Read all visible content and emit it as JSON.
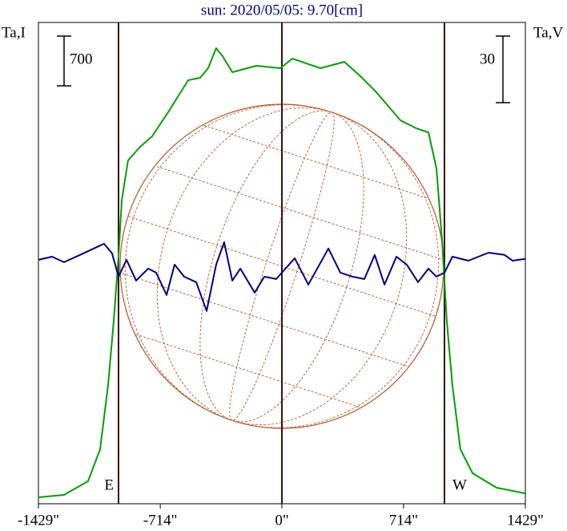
{
  "chart_data": {
    "type": "line",
    "title": "sun: 2020/05/05: 9.70[cm]",
    "xlim": [
      -1429,
      1429
    ],
    "xticks": [
      {
        "value": -1429,
        "label": "-1429\""
      },
      {
        "value": -714,
        "label": "-714\""
      },
      {
        "value": 0,
        "label": "0\""
      },
      {
        "value": 714,
        "label": "714\""
      },
      {
        "value": 1429,
        "label": "1429\""
      }
    ],
    "ylim": [
      -90,
      6684
    ],
    "y2lim": [
      -110,
      107
    ],
    "series": [
      {
        "name": "Ta,I",
        "color": "#00a000",
        "axis": "y",
        "x": [
          -1429,
          -1279,
          -1138,
          -1067,
          -1020,
          -987,
          -959,
          -940,
          -903,
          -832,
          -762,
          -668,
          -550,
          -480,
          -433,
          -386,
          -348,
          -291,
          -150,
          -9,
          61,
          226,
          367,
          461,
          555,
          696,
          790,
          860,
          907,
          940,
          968,
          1001,
          1048,
          1119,
          1260,
          1429
        ],
        "values": [
          0,
          34,
          226,
          677,
          1580,
          2484,
          3387,
          4177,
          4742,
          4934,
          5081,
          5419,
          5871,
          5905,
          6040,
          6322,
          6209,
          5984,
          6074,
          6040,
          6175,
          6040,
          6130,
          5927,
          5701,
          5306,
          5193,
          5137,
          4629,
          3613,
          2484,
          1580,
          677,
          339,
          136,
          56
        ]
      },
      {
        "name": "Ta,V",
        "color": "#000080",
        "axis": "y2",
        "x": [
          -1429,
          -1349,
          -1279,
          -1185,
          -1044,
          -997,
          -959,
          -912,
          -856,
          -785,
          -738,
          -677,
          -630,
          -574,
          -503,
          -442,
          -386,
          -339,
          -291,
          -244,
          -160,
          -103,
          -33,
          0,
          75,
          155,
          273,
          343,
          414,
          484,
          545,
          602,
          672,
          733,
          799,
          860,
          907,
          954,
          1001,
          1095,
          1213,
          1307,
          1354,
          1429
        ],
        "values": [
          0,
          1.4,
          -1.1,
          2.2,
          7.2,
          2.9,
          -7.6,
          0,
          -9.4,
          -4.0,
          -5.8,
          -15.9,
          -2.2,
          -7.6,
          -10.1,
          -23.1,
          -2.2,
          7.9,
          -9.4,
          -4.0,
          -14.8,
          -7.6,
          -8.7,
          -5.8,
          0.7,
          -11.2,
          5.1,
          -5.8,
          -7.6,
          -8.7,
          2.2,
          -11.2,
          1.4,
          -2.2,
          -10.1,
          -4.0,
          -7.6,
          -5.8,
          1.4,
          -0.4,
          3.2,
          2.2,
          -0.4,
          0.4
        ]
      }
    ],
    "vlines": [
      {
        "x": -959,
        "label": "E"
      },
      {
        "x": 0
      },
      {
        "x": 954,
        "label": "W"
      }
    ],
    "scale_bars": [
      {
        "value": 700,
        "axis": "y"
      },
      {
        "value": 30,
        "axis": "y2"
      }
    ]
  }
}
